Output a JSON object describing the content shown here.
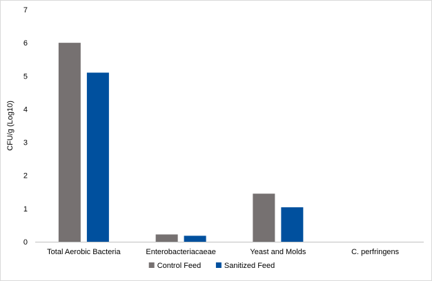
{
  "chart_data": {
    "type": "bar",
    "title": "",
    "xlabel": "",
    "ylabel": "CFU/g (Log10)",
    "ylim": [
      0,
      7
    ],
    "yticks": [
      0,
      1,
      2,
      3,
      4,
      5,
      6,
      7
    ],
    "categories": [
      "Total Aerobic Bacteria",
      "Enterobacteriacaeae",
      "Yeast and Molds",
      "C. perfringens"
    ],
    "series": [
      {
        "name": "Control Feed",
        "color": "#767171",
        "values": [
          6.0,
          0.22,
          1.45,
          0
        ]
      },
      {
        "name": "Sanitized Feed",
        "color": "#00509e",
        "values": [
          5.1,
          0.18,
          1.04,
          0
        ]
      }
    ],
    "grid": false,
    "legend": "bottom-center"
  }
}
